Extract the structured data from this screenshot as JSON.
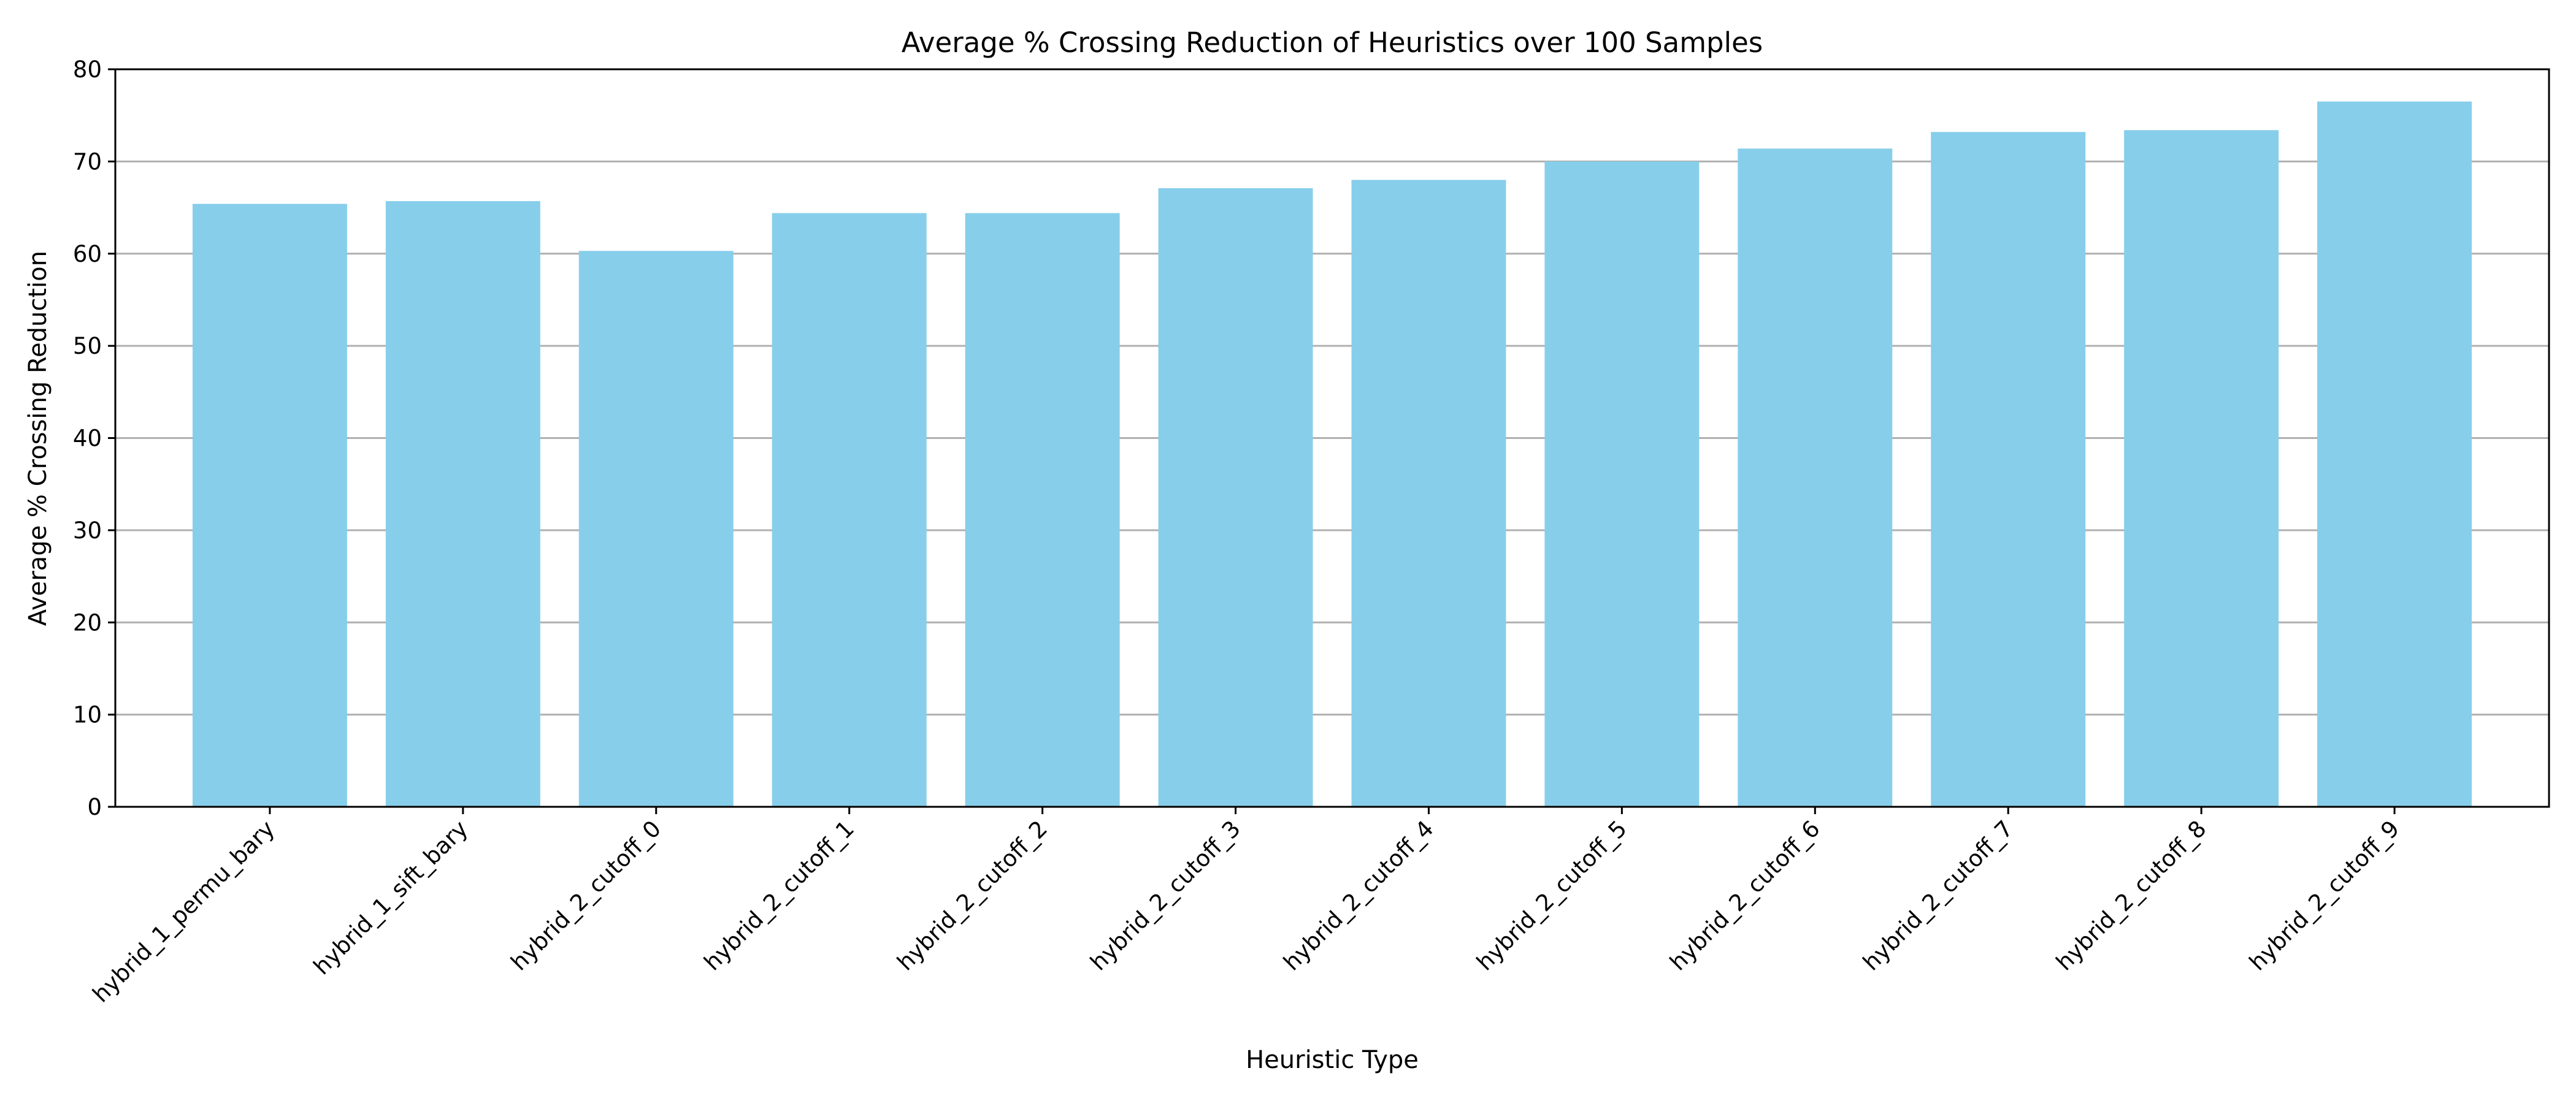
{
  "chart_data": {
    "type": "bar",
    "title": "Average % Crossing Reduction of Heuristics over 100 Samples",
    "xlabel": "Heuristic Type",
    "ylabel": "Average % Crossing Reduction",
    "categories": [
      "hybrid_1_permu_bary",
      "hybrid_1_sift_bary",
      "hybrid_2_cutoff_0",
      "hybrid_2_cutoff_1",
      "hybrid_2_cutoff_2",
      "hybrid_2_cutoff_3",
      "hybrid_2_cutoff_4",
      "hybrid_2_cutoff_5",
      "hybrid_2_cutoff_6",
      "hybrid_2_cutoff_7",
      "hybrid_2_cutoff_8",
      "hybrid_2_cutoff_9"
    ],
    "values": [
      65.4,
      65.7,
      60.3,
      64.4,
      64.4,
      67.1,
      68.0,
      70.0,
      71.4,
      73.2,
      73.4,
      76.5
    ],
    "ylim": [
      0,
      80
    ],
    "yticks": [
      0,
      10,
      20,
      30,
      40,
      50,
      60,
      70,
      80
    ],
    "grid": "horizontal",
    "bar_color": "#87CEEB",
    "grid_color": "#b0b0b0"
  }
}
